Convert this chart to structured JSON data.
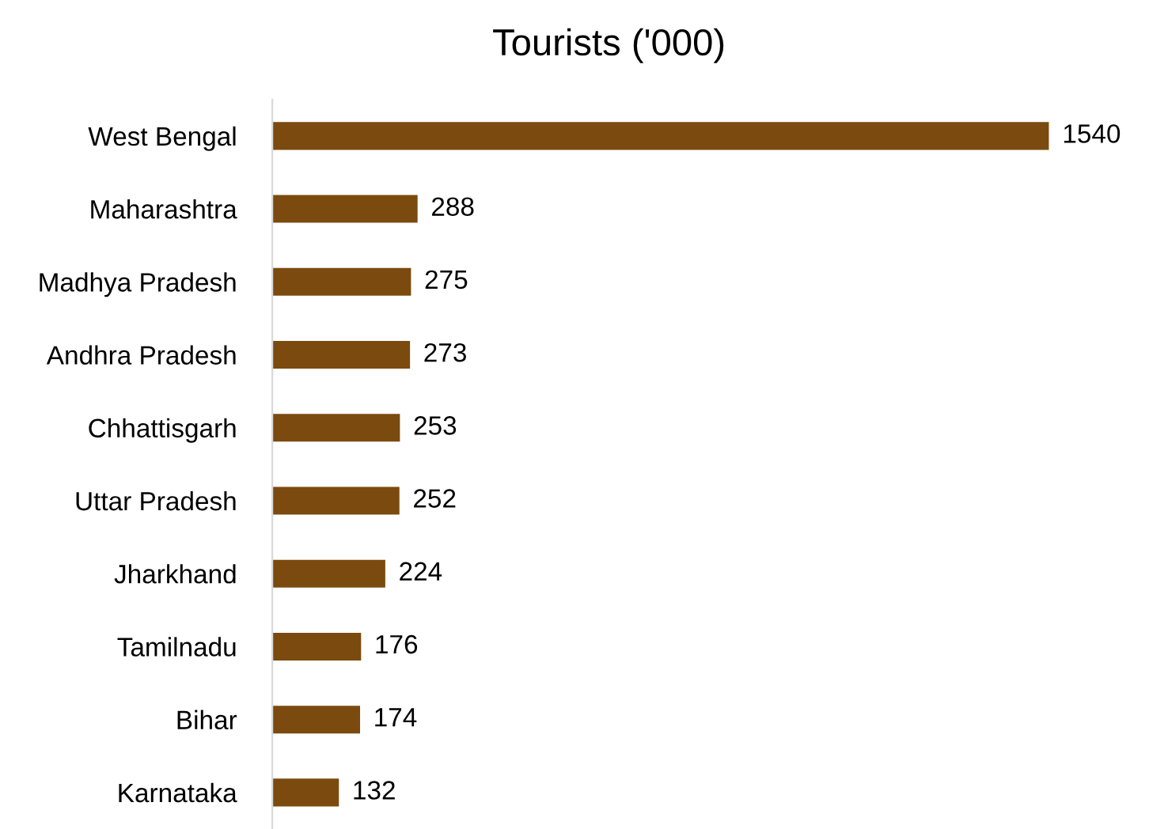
{
  "chart_data": {
    "type": "bar",
    "orientation": "horizontal",
    "title": "Tourists ('000)",
    "categories": [
      "West Bengal",
      "Maharashtra",
      "Madhya Pradesh",
      "Andhra Pradesh",
      "Chhattisgarh",
      "Uttar Pradesh",
      "Jharkhand",
      "Tamilnadu",
      "Bihar",
      "Karnataka"
    ],
    "values": [
      1540,
      288,
      275,
      273,
      253,
      252,
      224,
      176,
      174,
      132
    ],
    "color": "#7a4a0f",
    "data_labels": true,
    "grid": false,
    "legend": false
  }
}
